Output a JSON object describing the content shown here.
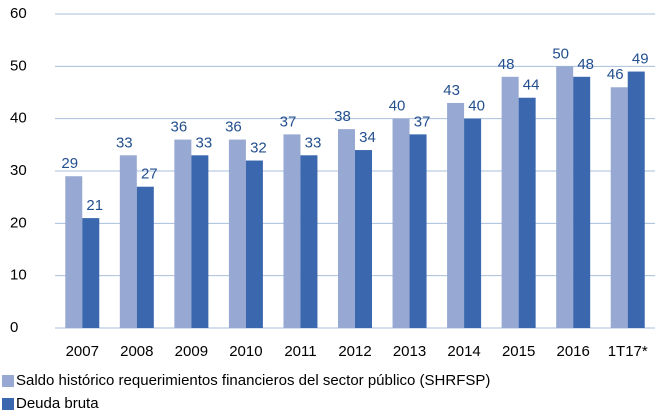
{
  "chart_data": {
    "type": "bar",
    "categories": [
      "2007",
      "2008",
      "2009",
      "2010",
      "2011",
      "2012",
      "2013",
      "2014",
      "2015",
      "2016",
      "1T17*"
    ],
    "series": [
      {
        "name": "Saldo histórico requerimientos financieros del sector público (SHRFSP)",
        "color": "#97a8d2",
        "values": [
          29,
          33,
          36,
          36,
          37,
          38,
          40,
          43,
          48,
          50,
          46
        ]
      },
      {
        "name": "Deuda bruta",
        "color": "#3a67ae",
        "values": [
          21,
          27,
          33,
          32,
          33,
          34,
          37,
          40,
          44,
          48,
          49
        ]
      }
    ],
    "ylim": [
      0,
      60
    ],
    "yticks": [
      0,
      10,
      20,
      30,
      40,
      50,
      60
    ],
    "grid": true,
    "legend": "bottom-left"
  }
}
